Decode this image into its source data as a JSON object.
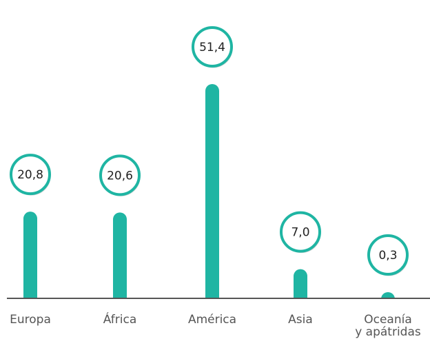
{
  "chart_data": {
    "type": "bar",
    "categories": [
      [
        "Europa"
      ],
      [
        "África"
      ],
      [
        "América"
      ],
      [
        "Asia"
      ],
      [
        "Oceanía",
        "y apátridas"
      ]
    ],
    "values": [
      20.8,
      20.6,
      51.4,
      7.0,
      0.3
    ],
    "value_labels": [
      "20,8",
      "20,6",
      "51,4",
      "7,0",
      "0,3"
    ],
    "title": "",
    "xlabel": "",
    "ylabel": "",
    "ylim": [
      0,
      51.4
    ],
    "grid": false,
    "legend": "none"
  },
  "colors": {
    "bar": "#1fb5a3",
    "bubble_border": "#1fb5a3",
    "axis": "#555555",
    "label_text": "#555555",
    "value_text": "#222222"
  }
}
